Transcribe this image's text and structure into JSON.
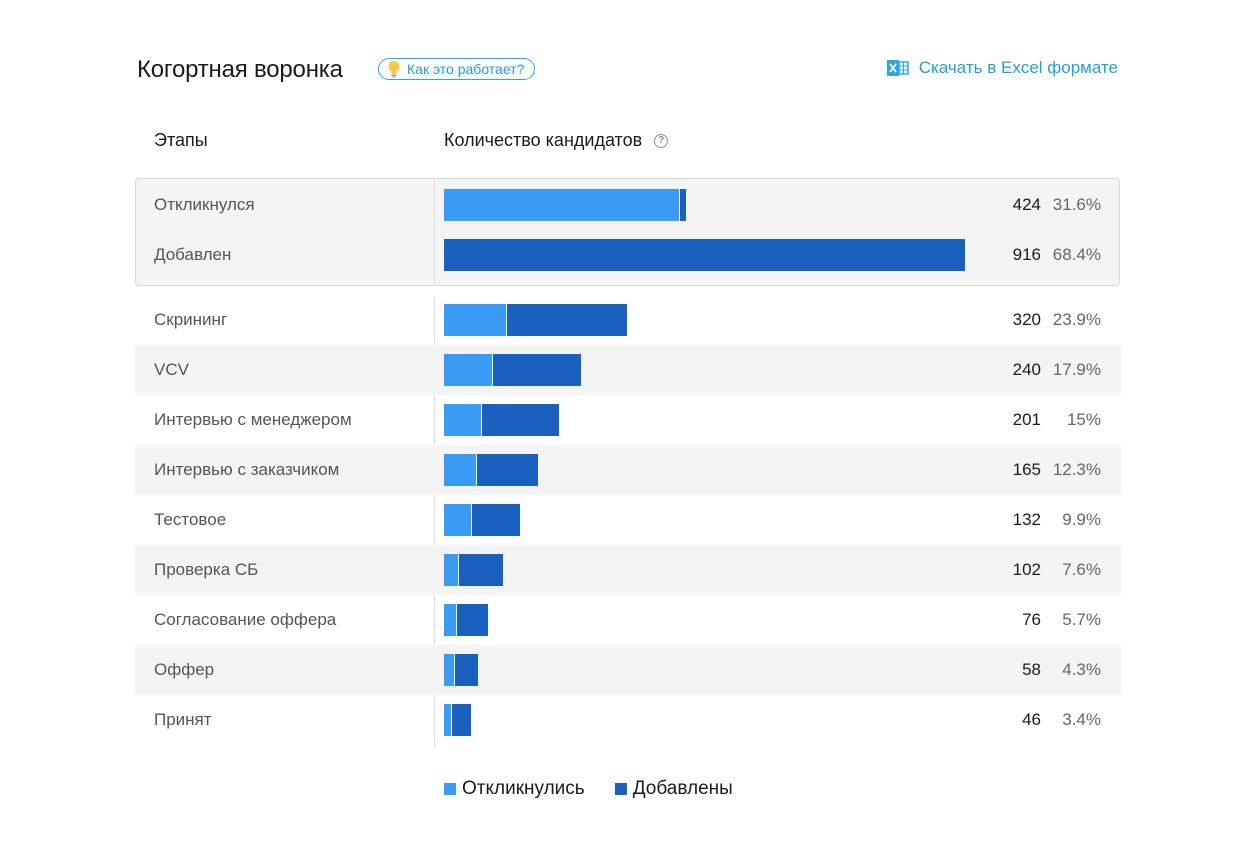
{
  "header": {
    "title": "Когортная воронка",
    "how_label": "Как это работает?",
    "excel_label": "Скачать в Excel формате"
  },
  "columns": {
    "stages": "Этапы",
    "count": "Количество кандидатов"
  },
  "icons": {
    "how": "lightbulb-icon",
    "excel": "excel-file-icon",
    "help": "question-circle-icon"
  },
  "colors": {
    "responded": "#3a9bf4",
    "added": "#1960bf",
    "accent": "#1e9fe0"
  },
  "chart_data": {
    "type": "bar",
    "orientation": "horizontal",
    "stacked": true,
    "categories": [
      "Откликнулся",
      "Добавлен",
      "Скрининг",
      "VCV",
      "Интервью с менеджером",
      "Интервью с заказчиком",
      "Тестовое",
      "Проверка СБ",
      "Согласование оффера",
      "Оффер",
      "Принят"
    ],
    "totals": [
      424,
      916,
      320,
      240,
      201,
      165,
      132,
      102,
      76,
      58,
      46
    ],
    "percents": [
      "31.6%",
      "68.4%",
      "23.9%",
      "17.9%",
      "15%",
      "12.3%",
      "9.9%",
      "7.6%",
      "5.7%",
      "4.3%",
      "3.4%"
    ],
    "series": [
      {
        "name": "Откликнулись",
        "values": [
          414,
          0,
          109,
          85,
          65,
          57,
          47,
          24,
          21,
          18,
          12
        ]
      },
      {
        "name": "Добавлены",
        "values": [
          10,
          916,
          211,
          155,
          136,
          108,
          85,
          78,
          55,
          40,
          34
        ]
      }
    ],
    "xlim": [
      0,
      916
    ],
    "legend": "bottom",
    "grid": false
  }
}
